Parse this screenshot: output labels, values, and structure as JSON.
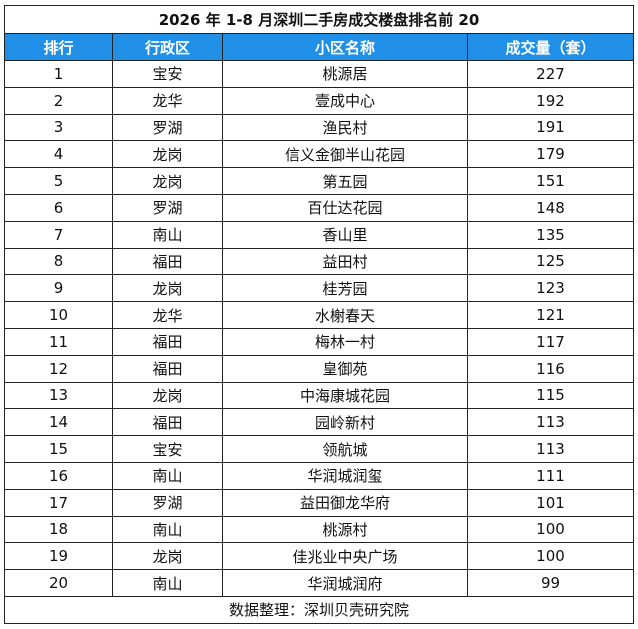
{
  "table": {
    "title": "2026 年 1-8 月深圳二手房成交楼盘排名前 20",
    "header": [
      "排行",
      "行政区",
      "小区名称",
      "成交量（套）"
    ],
    "rows": [
      [
        1,
        "宝安",
        "桃源居",
        227
      ],
      [
        2,
        "龙华",
        "壹成中心",
        192
      ],
      [
        3,
        "罗湖",
        "渔民村",
        191
      ],
      [
        4,
        "龙岗",
        "信义金御半山花园",
        179
      ],
      [
        5,
        "龙岗",
        "第五园",
        151
      ],
      [
        6,
        "罗湖",
        "百仕达花园",
        148
      ],
      [
        7,
        "南山",
        "香山里",
        135
      ],
      [
        8,
        "福田",
        "益田村",
        125
      ],
      [
        9,
        "龙岗",
        "桂芳园",
        123
      ],
      [
        10,
        "龙华",
        "水榭春天",
        121
      ],
      [
        11,
        "福田",
        "梅林一村",
        117
      ],
      [
        12,
        "福田",
        "皇御苑",
        116
      ],
      [
        13,
        "龙岗",
        "中海康城花园",
        115
      ],
      [
        14,
        "福田",
        "园岭新村",
        113
      ],
      [
        15,
        "宝安",
        "领航城",
        113
      ],
      [
        16,
        "南山",
        "华润城润玺",
        111
      ],
      [
        17,
        "罗湖",
        "益田御龙华府",
        101
      ],
      [
        18,
        "南山",
        "桃源村",
        100
      ],
      [
        19,
        "龙岗",
        "佳兆业中央广场",
        100
      ],
      [
        20,
        "南山",
        "华润城润府",
        99
      ]
    ],
    "footer": "数据整理：深圳贝壳研究院"
  }
}
